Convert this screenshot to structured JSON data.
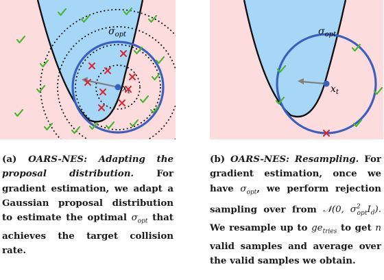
{
  "panel_a": {
    "sigma_label": "σ",
    "sigma_sub": "opt",
    "x_label": "x",
    "x_sub": "t"
  },
  "panel_b": {
    "sigma_label": "σ",
    "sigma_sub": "opt",
    "x_label": "x",
    "x_sub": "t"
  },
  "caption_a": {
    "tag": "(a)",
    "title": "OARS-NES: Adapting the proposal distribution.",
    "body_1": "For gradient estimation, we adapt a Gaussian proposal distribution to estimate the optimal",
    "sigma": "σ",
    "sigma_sub": "opt",
    "body_2": "that achieves the target collision rate."
  },
  "caption_b": {
    "tag": "(b)",
    "title": "OARS-NES: Resampling.",
    "body_1": "For gradient estimation, once we have",
    "sigma": "σ",
    "sigma_sub": "opt",
    "body_2": ", we perform rejection sampling over from",
    "normal": "𝒩(0, σ",
    "normal_sup": "2",
    "normal_sub": "opt",
    "normal_end": "I",
    "normal_end_sub": "d",
    "normal_close": ").",
    "body_3": "We resample up to",
    "tries": "ge",
    "tries_sub": "tries",
    "body_4": "to get",
    "n": "n",
    "body_5": "valid samples and average over the valid samples we obtain."
  },
  "colors": {
    "background": "#fddcdd",
    "valley": "#a6d7f7",
    "circle": "#3a5fbe",
    "accept": "#4db535",
    "reject": "#d9262c",
    "arrow": "#808080"
  }
}
